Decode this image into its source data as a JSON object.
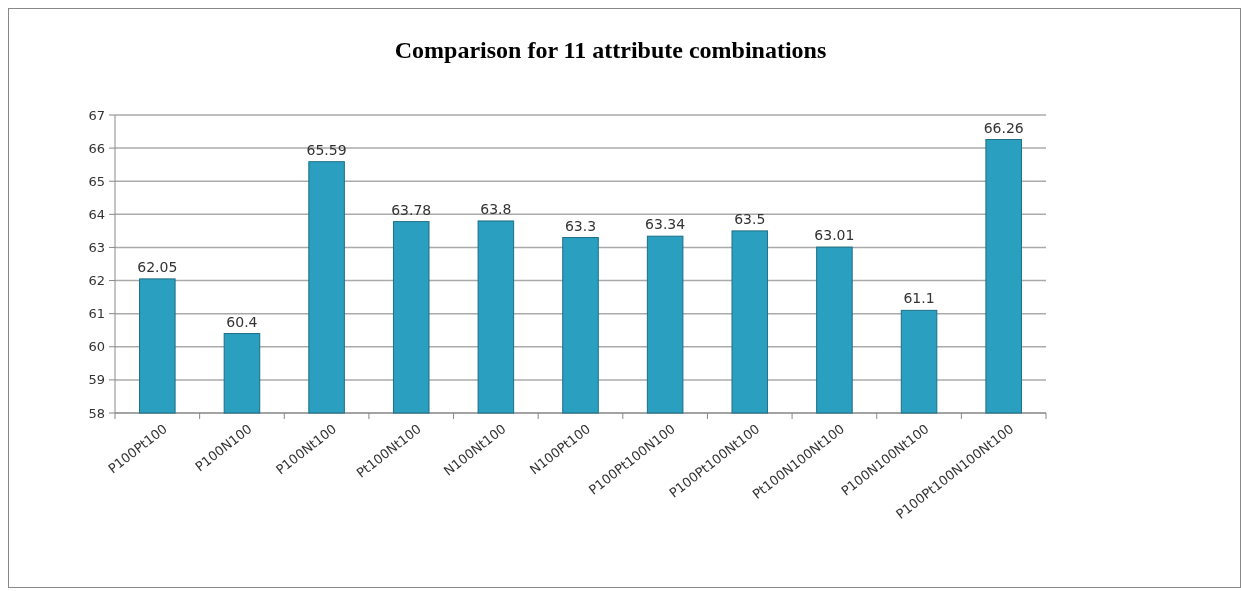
{
  "chart_data": {
    "type": "bar",
    "title": "Comparison for 11 attribute combinations",
    "categories": [
      "P100Pt100",
      "P100N100",
      "P100Nt100",
      "Pt100Nt100",
      "N100Nt100",
      "N100Pt100",
      "P100Pt100N100",
      "P100Pt100Nt100",
      "Pt100N100Nt100",
      "P100N100Nt100",
      "P100Pt100N100Nt100"
    ],
    "values": [
      62.05,
      60.4,
      65.59,
      63.78,
      63.8,
      63.3,
      63.34,
      63.5,
      63.01,
      61.1,
      66.26
    ],
    "color": "#2a9fc0",
    "ylim": [
      58,
      67
    ],
    "yticks": [
      58,
      59,
      60,
      61,
      62,
      63,
      64,
      65,
      66,
      67
    ],
    "grid": "y",
    "data_labels": true
  }
}
